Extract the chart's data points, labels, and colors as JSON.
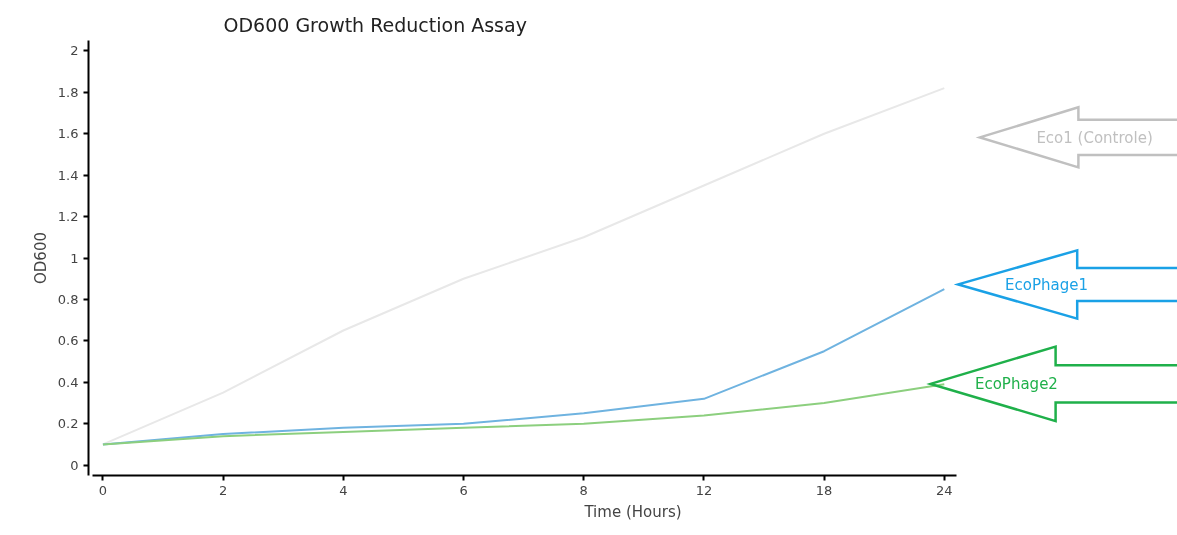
{
  "chart_data": {
    "type": "line",
    "title": "OD600 Growth Reduction Assay",
    "xlabel": "Time (Hours)",
    "ylabel": "OD600",
    "categories": [
      "0",
      "2",
      "4",
      "6",
      "8",
      "12",
      "18",
      "24"
    ],
    "ylim": [
      -0.05,
      2.05
    ],
    "yticks": [
      0,
      0.2,
      0.4,
      0.6,
      0.8,
      1,
      1.2,
      1.4,
      1.6,
      1.8,
      2
    ],
    "grid": false,
    "marker": "none",
    "line_style": "solid",
    "series": [
      {
        "name": "Eco1 (Controle)",
        "color": "#e8e8e8",
        "values": [
          0.1,
          0.35,
          0.65,
          0.9,
          1.1,
          1.35,
          1.6,
          1.82
        ]
      },
      {
        "name": "EcoPhage1",
        "color": "#6fb3e0",
        "values": [
          0.1,
          0.15,
          0.18,
          0.2,
          0.25,
          0.32,
          0.55,
          0.85
        ]
      },
      {
        "name": "EcoPhage2",
        "color": "#8ccf7e",
        "values": [
          0.1,
          0.14,
          0.16,
          0.18,
          0.2,
          0.24,
          0.3,
          0.39
        ]
      }
    ]
  }
}
